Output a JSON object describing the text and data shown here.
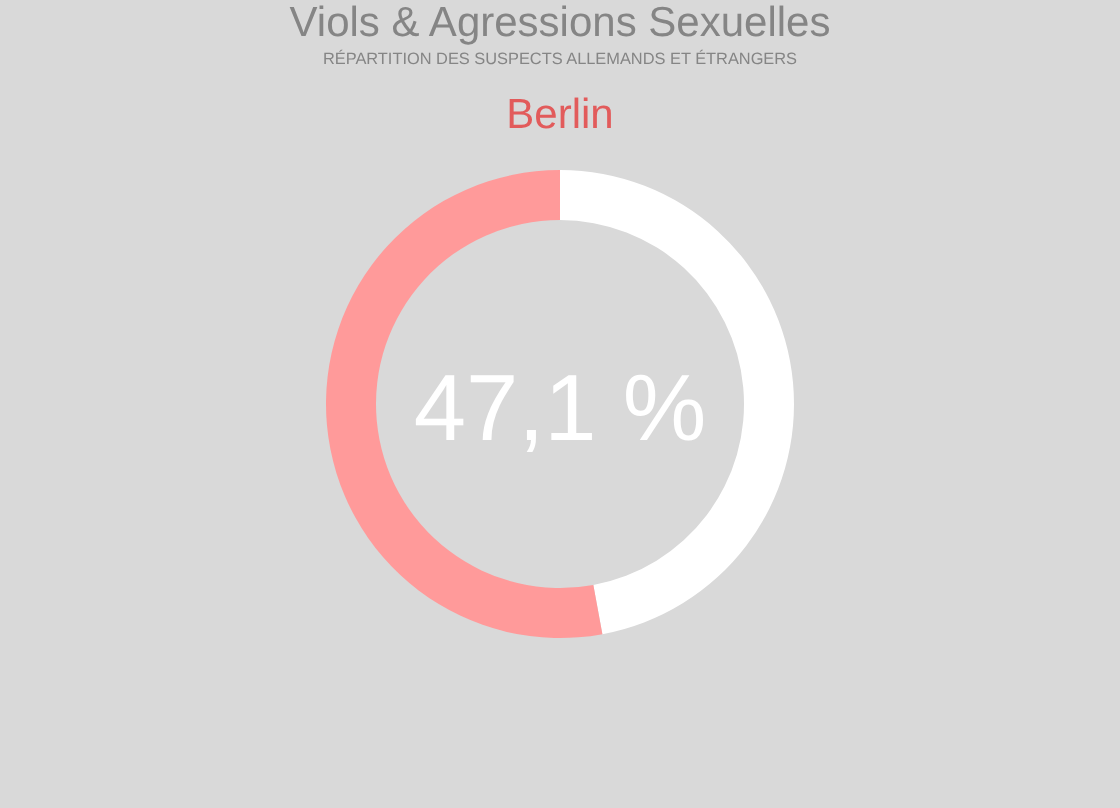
{
  "chart_data": {
    "type": "donut",
    "title": "Viols & Agressions Sexuelles",
    "subtitle": "RÉPARTITION DES SUSPECTS ALLEMANDS ET ÉTRANGERS",
    "annotations": [
      "Berlin"
    ],
    "categories": [
      null,
      null
    ],
    "values": [
      47.1,
      52.9
    ],
    "colors": [
      "#ffffff",
      "#ff9a9a"
    ],
    "value_labels": [
      "47,1 %",
      null
    ]
  }
}
